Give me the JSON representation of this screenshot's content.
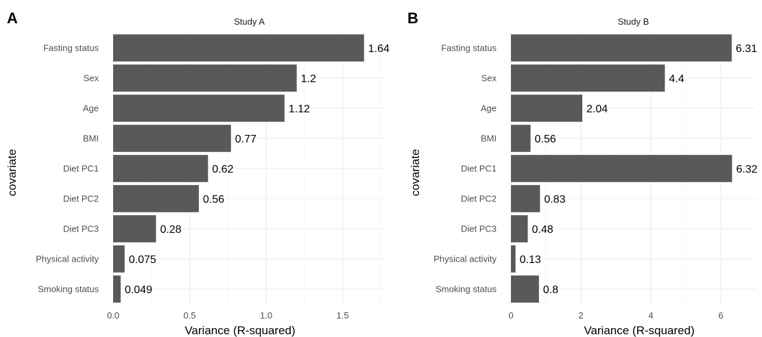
{
  "chart_data": [
    {
      "type": "bar",
      "orientation": "horizontal",
      "panel_label": "A",
      "title": "Study A",
      "xlabel": "Variance (R-squared)",
      "ylabel": "covariate",
      "categories": [
        "Fasting status",
        "Sex",
        "Age",
        "BMI",
        "Diet PC1",
        "Diet PC2",
        "Diet PC3",
        "Physical activity",
        "Smoking status"
      ],
      "values": [
        1.64,
        1.2,
        1.12,
        0.77,
        0.62,
        0.56,
        0.28,
        0.075,
        0.049
      ],
      "data_labels": [
        "1.64",
        "1.2",
        "1.12",
        "0.77",
        "0.62",
        "0.56",
        "0.28",
        "0.075",
        "0.049"
      ],
      "xlim": [
        0,
        1.78
      ],
      "xticks": [
        0,
        0.5,
        1,
        1.5
      ],
      "xtick_labels": [
        "0.0",
        "0.5",
        "1.0",
        "1.5"
      ],
      "bar_color": "#595959",
      "grid": true
    },
    {
      "type": "bar",
      "orientation": "horizontal",
      "panel_label": "B",
      "title": "Study B",
      "xlabel": "Variance (R-squared)",
      "ylabel": "covariate",
      "categories": [
        "Fasting status",
        "Sex",
        "Age",
        "BMI",
        "Diet PC1",
        "Diet PC2",
        "Diet PC3",
        "Physical activity",
        "Smoking status"
      ],
      "values": [
        6.31,
        4.4,
        2.04,
        0.56,
        6.32,
        0.83,
        0.48,
        0.13,
        0.8
      ],
      "data_labels": [
        "6.31",
        "4.4",
        "2.04",
        "0.56",
        "6.32",
        "0.83",
        "0.48",
        "0.13",
        "0.8"
      ],
      "xlim": [
        0,
        7.0
      ],
      "xticks": [
        0,
        2,
        4,
        6
      ],
      "xtick_labels": [
        "0",
        "2",
        "4",
        "6"
      ],
      "bar_color": "#595959",
      "grid": true
    }
  ]
}
